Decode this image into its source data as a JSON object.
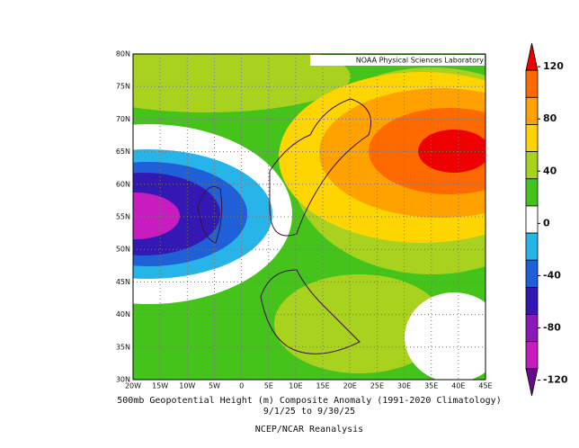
{
  "map": {
    "credit": "NOAA Physical Sciences Laboratory",
    "lon_labels": [
      "20W",
      "15W",
      "10W",
      "5W",
      "0",
      "5E",
      "10E",
      "15E",
      "20E",
      "25E",
      "30E",
      "35E",
      "40E",
      "45E"
    ],
    "lat_labels": [
      "30N",
      "35N",
      "40N",
      "45N",
      "50N",
      "55N",
      "60N",
      "65N",
      "70N",
      "75N",
      "80N"
    ],
    "caption": [
      "500mb Geopotential Height (m) Composite Anomaly (1991-2020 Climatology)",
      "9/1/25  to 9/30/25",
      "NCEP/NCAR Reanalysis"
    ]
  },
  "colorbar": {
    "lim": [
      -132,
      138
    ],
    "ticks": [
      -120,
      -80,
      -40,
      0,
      40,
      80,
      120
    ],
    "colors": [
      "#ee0000",
      "#ff6a00",
      "#ffa200",
      "#ffd500",
      "#a8d21e",
      "#44c41a",
      "#ffffff",
      "#27b4e8",
      "#1f5fd8",
      "#3418b4",
      "#8a1ab8",
      "#c81cc0",
      "#6a0a8c"
    ]
  }
}
